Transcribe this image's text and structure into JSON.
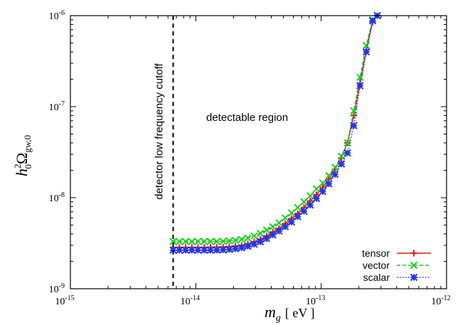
{
  "chart_data": {
    "type": "line",
    "xscale": "log",
    "yscale": "log",
    "xlim": [
      1e-15,
      1e-12
    ],
    "ylim": [
      1e-09,
      1e-06
    ],
    "x_ticks": [
      {
        "value": 1e-15,
        "base": "10",
        "exp": "-15"
      },
      {
        "value": 1e-14,
        "base": "10",
        "exp": "-14"
      },
      {
        "value": 1e-13,
        "base": "10",
        "exp": "-13"
      },
      {
        "value": 1e-12,
        "base": "10",
        "exp": "-12"
      }
    ],
    "y_ticks": [
      {
        "value": 1e-09,
        "base": "10",
        "exp": "-9"
      },
      {
        "value": 1e-08,
        "base": "10",
        "exp": "-8"
      },
      {
        "value": 1e-07,
        "base": "10",
        "exp": "-7"
      },
      {
        "value": 1e-06,
        "base": "10",
        "exp": "-6"
      }
    ],
    "xlabel": {
      "main": "m",
      "sub": "g",
      "units": "[ eV ]"
    },
    "ylabel": {
      "h": "h",
      "h_sup": "2",
      "h_sub": "0",
      "omega": "Ω",
      "omega_sub": "gw,0"
    },
    "cutoff": {
      "x": 6.6e-15,
      "label": "detector low frequency cutoff"
    },
    "region_label": "detectable region",
    "legend_position": "bottom-right",
    "series": [
      {
        "name": "tensor",
        "color": "#e41a1c",
        "marker": "plus",
        "line": "solid",
        "x": [
          6.6e-15,
          7.4e-15,
          8.3e-15,
          9.3e-15,
          1.04e-14,
          1.17e-14,
          1.31e-14,
          1.47e-14,
          1.65e-14,
          1.85e-14,
          2.07e-14,
          2.32e-14,
          2.6e-14,
          2.92e-14,
          3.27e-14,
          3.67e-14,
          4.11e-14,
          4.61e-14,
          5.17e-14,
          5.8e-14,
          6.5e-14,
          7.29e-14,
          8.17e-14,
          9.17e-14,
          1.03e-13,
          1.15e-13,
          1.29e-13,
          1.45e-13,
          1.62e-13,
          1.82e-13,
          2.04e-13,
          2.29e-13,
          2.57e-13,
          2.8e-13
        ],
        "y": [
          2.85e-09,
          2.85e-09,
          2.85e-09,
          2.85e-09,
          2.85e-09,
          2.85e-09,
          2.86e-09,
          2.87e-09,
          2.88e-09,
          2.91e-09,
          2.95e-09,
          3e-09,
          3.12e-09,
          3.28e-09,
          3.5e-09,
          3.8e-09,
          4.2e-09,
          4.6e-09,
          5.2e-09,
          5.9e-09,
          6.7e-09,
          7.8e-09,
          9.2e-09,
          1.08e-08,
          1.3e-08,
          1.6e-08,
          2.05e-08,
          2.75e-08,
          4e-08,
          8e-08,
          1.8e-07,
          4.2e-07,
          8.5e-07,
          1e-06
        ]
      },
      {
        "name": "vector",
        "color": "#22cc22",
        "marker": "x",
        "line": "dashed",
        "x": [
          6.6e-15,
          7.4e-15,
          8.3e-15,
          9.3e-15,
          1.04e-14,
          1.17e-14,
          1.31e-14,
          1.47e-14,
          1.65e-14,
          1.85e-14,
          2.07e-14,
          2.32e-14,
          2.6e-14,
          2.92e-14,
          3.27e-14,
          3.67e-14,
          4.11e-14,
          4.61e-14,
          5.17e-14,
          5.8e-14,
          6.5e-14,
          7.29e-14,
          8.17e-14,
          9.17e-14,
          1.03e-13,
          1.15e-13,
          1.29e-13,
          1.45e-13,
          1.62e-13,
          1.82e-13,
          2.04e-13,
          2.29e-13,
          2.57e-13,
          2.8e-13
        ],
        "y": [
          3.3e-09,
          3.3e-09,
          3.3e-09,
          3.3e-09,
          3.3e-09,
          3.3e-09,
          3.3e-09,
          3.3e-09,
          3.32e-09,
          3.35e-09,
          3.4e-09,
          3.48e-09,
          3.6e-09,
          3.8e-09,
          4.05e-09,
          4.4e-09,
          4.8e-09,
          5.3e-09,
          6e-09,
          6.8e-09,
          7.8e-09,
          9e-09,
          1.05e-08,
          1.25e-08,
          1.45e-08,
          1.75e-08,
          2.15e-08,
          2.85e-08,
          4e-08,
          9e-08,
          2.1e-07,
          4.7e-07,
          9e-07,
          1e-06
        ]
      },
      {
        "name": "scalar",
        "color": "#2233ee",
        "marker": "asterisk",
        "line": "dotted",
        "x": [
          6.6e-15,
          7.4e-15,
          8.3e-15,
          9.3e-15,
          1.04e-14,
          1.17e-14,
          1.31e-14,
          1.47e-14,
          1.65e-14,
          1.85e-14,
          2.07e-14,
          2.32e-14,
          2.6e-14,
          2.92e-14,
          3.27e-14,
          3.67e-14,
          4.11e-14,
          4.61e-14,
          5.17e-14,
          5.8e-14,
          6.5e-14,
          7.29e-14,
          8.17e-14,
          9.17e-14,
          1.03e-13,
          1.15e-13,
          1.29e-13,
          1.45e-13,
          1.62e-13,
          1.82e-13,
          2.04e-13,
          2.29e-13,
          2.57e-13,
          2.8e-13
        ],
        "y": [
          2.65e-09,
          2.65e-09,
          2.65e-09,
          2.65e-09,
          2.65e-09,
          2.65e-09,
          2.65e-09,
          2.66e-09,
          2.67e-09,
          2.7e-09,
          2.75e-09,
          2.82e-09,
          2.93e-09,
          3.08e-09,
          3.28e-09,
          3.55e-09,
          3.9e-09,
          4.3e-09,
          4.8e-09,
          5.4e-09,
          6.2e-09,
          7.1e-09,
          8.3e-09,
          9.8e-09,
          1.17e-08,
          1.42e-08,
          1.8e-08,
          2.35e-08,
          3.1e-08,
          6.2e-08,
          1.7e-07,
          4e-07,
          8.8e-07,
          1e-06
        ]
      }
    ]
  }
}
